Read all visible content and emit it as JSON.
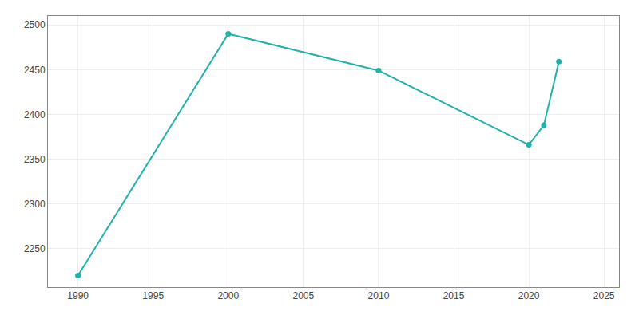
{
  "chart_data": {
    "type": "line",
    "x": [
      1990,
      2000,
      2010,
      2020,
      2021,
      2022
    ],
    "values": [
      2220,
      2490,
      2449,
      2366,
      2388,
      2459
    ],
    "color": "#20B2AA",
    "marker": "circle",
    "line_style": "solid",
    "xlim": [
      1988,
      2026
    ],
    "ylim": [
      2207,
      2510
    ],
    "xticks": [
      1990,
      1995,
      2000,
      2005,
      2010,
      2015,
      2020,
      2025
    ],
    "yticks": [
      2250,
      2300,
      2350,
      2400,
      2450,
      2500
    ],
    "grid": true
  }
}
